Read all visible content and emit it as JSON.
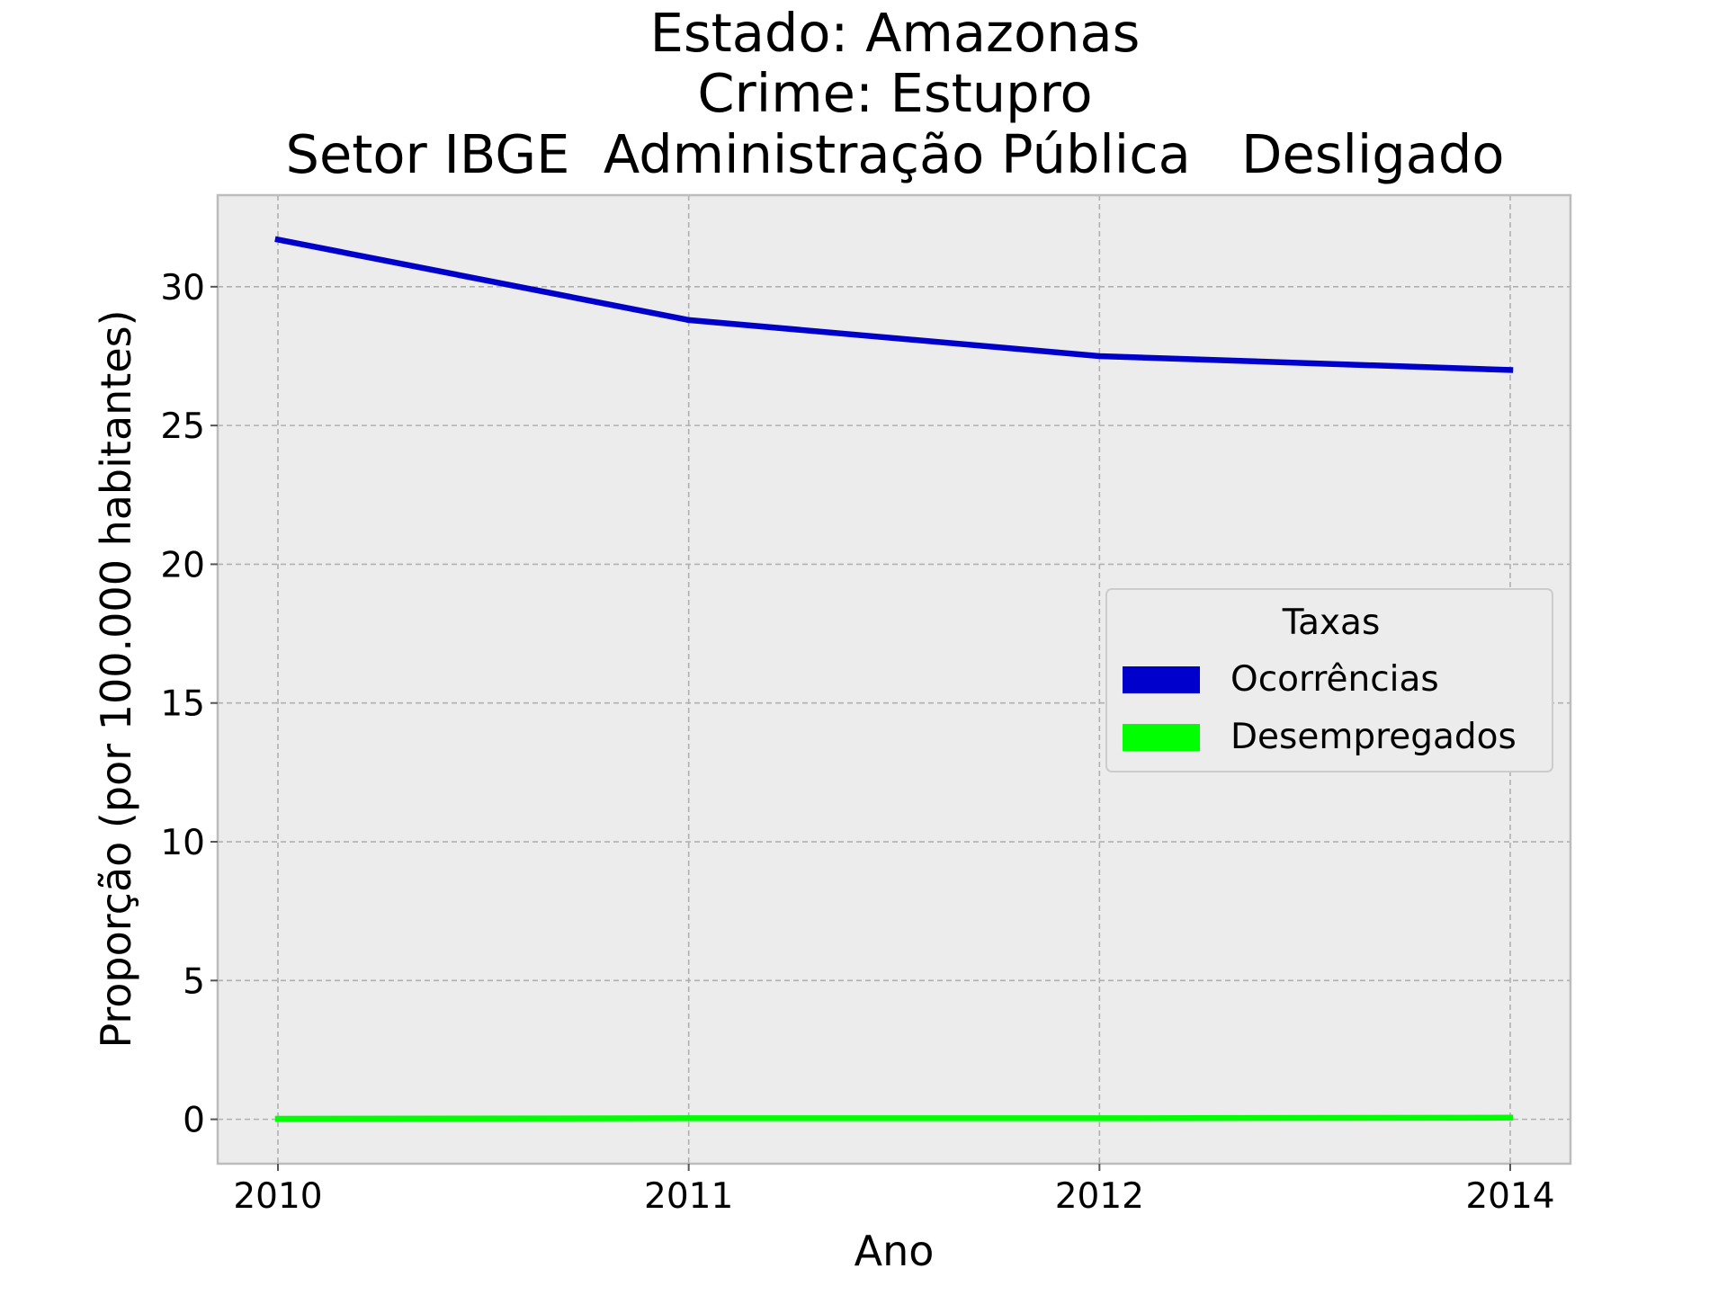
{
  "chart_data": {
    "type": "line",
    "title_lines": [
      "Estado: Amazonas",
      "Crime: Estupro",
      "Setor IBGE  Administração Pública   Desligado"
    ],
    "xlabel": "Ano",
    "ylabel": "Proporção (por 100.000 habitantes)",
    "x": [
      "2010",
      "2011",
      "2012",
      "2014"
    ],
    "xticks": [
      "2010",
      "2011",
      "2012",
      "2014"
    ],
    "yticks": [
      0,
      5,
      10,
      15,
      20,
      25,
      30
    ],
    "ylim": [
      -1.6,
      33.3
    ],
    "grid": true,
    "legend": {
      "title": "Taxas",
      "placement": "center-right"
    },
    "series": [
      {
        "name": "Ocorrências",
        "color": "#0000cc",
        "values": [
          31.7,
          28.8,
          27.5,
          27.0
        ]
      },
      {
        "name": "Desempregados",
        "color": "#00ff00",
        "values": [
          0.02,
          0.04,
          0.04,
          0.06
        ]
      }
    ],
    "colors": {
      "plot_background": "#ececec",
      "grid": "#b0b0b0",
      "spine": "#bcbcbc"
    }
  }
}
